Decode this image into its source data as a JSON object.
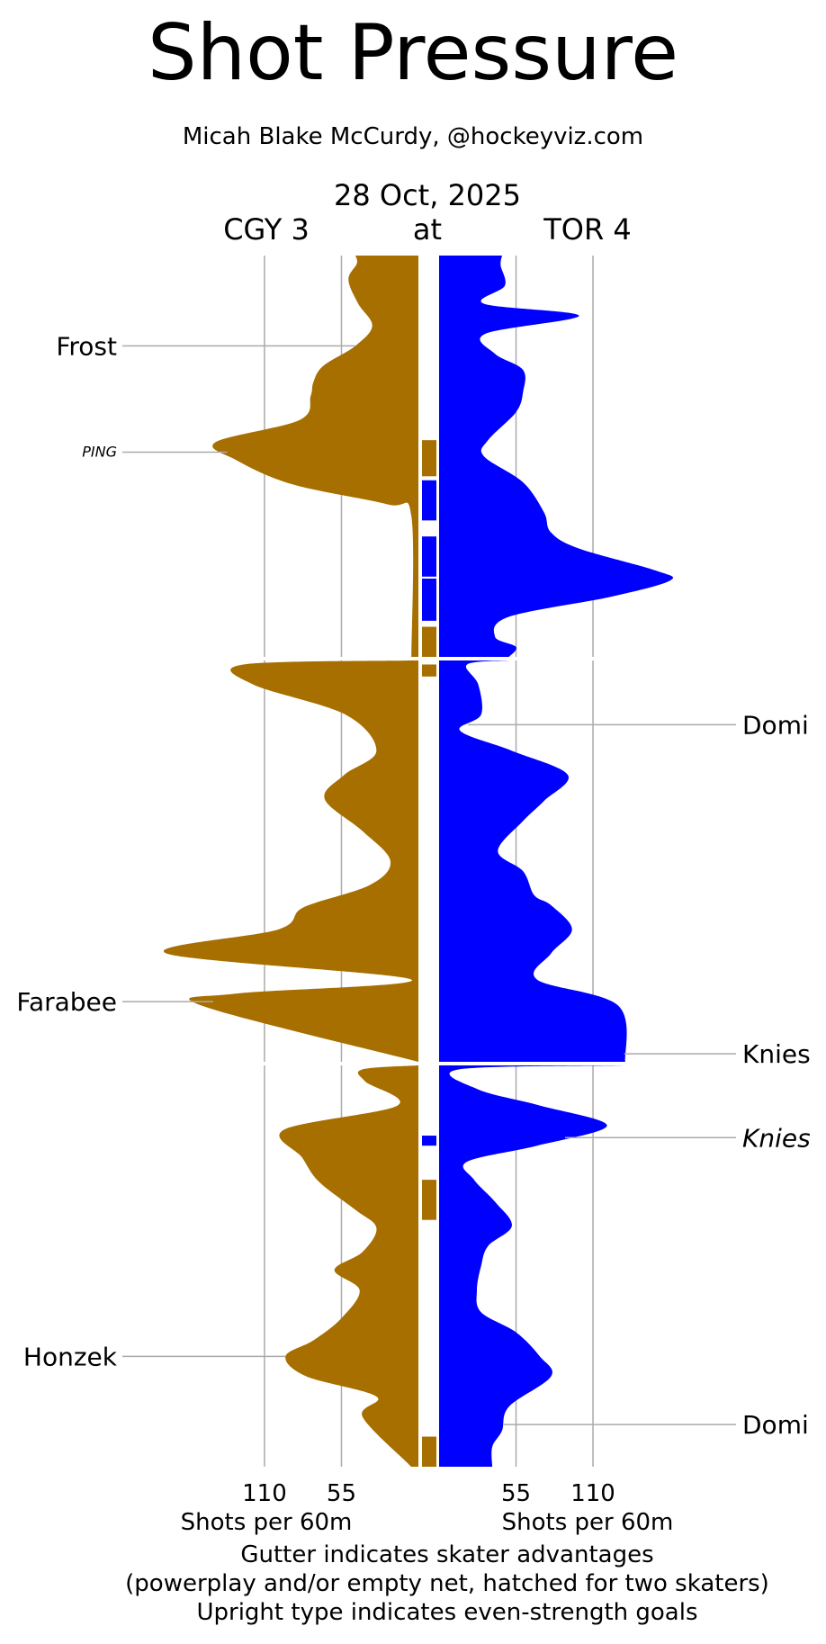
{
  "header": {
    "title": "Shot Pressure",
    "author": "Micah Blake McCurdy, @hockeyviz.com",
    "date": "28 Oct, 2025",
    "away_label": "CGY 3",
    "at_label": "at",
    "home_label": "TOR 4"
  },
  "footer": {
    "left_axis_label": "Shots per 60m",
    "right_axis_label": "Shots per 60m",
    "note_1": "Gutter indicates skater advantages",
    "note_2": "(powerplay and/or empty net, hatched for two skaters)",
    "note_3": "Upright type indicates even-strength goals"
  },
  "chart_data": {
    "type": "area",
    "title": "Shot Pressure",
    "x_axis": {
      "label": "Shots per 60m",
      "ticks": [
        110,
        55
      ],
      "range": [
        0,
        150
      ],
      "grid": true
    },
    "y_axis": {
      "label": "",
      "unit": "game minutes",
      "range": [
        0,
        60
      ],
      "periods": [
        [
          0,
          20
        ],
        [
          20,
          40
        ],
        [
          40,
          60
        ]
      ]
    },
    "colors": {
      "away": "#a66f00",
      "home": "#0000ff",
      "grid": "#aaaaaa"
    },
    "series": [
      {
        "name": "CGY 3",
        "side": "left",
        "color": "#a66f00",
        "profile": [
          [
            0,
            45
          ],
          [
            0.4,
            44
          ],
          [
            1.2,
            50
          ],
          [
            2.4,
            43
          ],
          [
            3.5,
            33
          ],
          [
            4.5,
            45
          ],
          [
            5.5,
            68
          ],
          [
            6.3,
            75
          ],
          [
            7.0,
            77
          ],
          [
            8.2,
            85
          ],
          [
            9.3,
            145
          ],
          [
            10.2,
            130
          ],
          [
            11.4,
            90
          ],
          [
            12.4,
            22
          ],
          [
            13.0,
            5
          ],
          [
            20.0,
            5
          ],
          [
            20.2,
            125
          ],
          [
            21.2,
            118
          ],
          [
            22.7,
            52
          ],
          [
            24.5,
            30
          ],
          [
            25.7,
            53
          ],
          [
            26.9,
            67
          ],
          [
            28.5,
            40
          ],
          [
            30.0,
            20
          ],
          [
            31.2,
            35
          ],
          [
            32.3,
            82
          ],
          [
            33.4,
            100
          ],
          [
            34.6,
            180
          ],
          [
            35.9,
            5
          ],
          [
            36.6,
            130
          ],
          [
            37.2,
            155
          ],
          [
            40.0,
            0
          ],
          [
            40.2,
            40
          ],
          [
            40.8,
            38
          ],
          [
            42.0,
            15
          ],
          [
            43.2,
            96
          ],
          [
            44.6,
            83
          ],
          [
            45.8,
            71
          ],
          [
            47.2,
            45
          ],
          [
            48.1,
            30
          ],
          [
            49.3,
            40
          ],
          [
            50.2,
            60
          ],
          [
            51.2,
            42
          ],
          [
            52.6,
            55
          ],
          [
            53.7,
            75
          ],
          [
            54.5,
            95
          ],
          [
            55.5,
            80
          ],
          [
            56.5,
            30
          ],
          [
            57.5,
            40
          ],
          [
            59.8,
            8
          ],
          [
            60.0,
            5
          ]
        ]
      },
      {
        "name": "TOR 4",
        "side": "right",
        "color": "#0000ff",
        "profile": [
          [
            0,
            45
          ],
          [
            0.5,
            44
          ],
          [
            1.5,
            47
          ],
          [
            2.4,
            32
          ],
          [
            3.0,
            100
          ],
          [
            3.9,
            33
          ],
          [
            4.9,
            40
          ],
          [
            5.7,
            60
          ],
          [
            6.8,
            60
          ],
          [
            7.8,
            55
          ],
          [
            9.2,
            35
          ],
          [
            10.0,
            32
          ],
          [
            11.3,
            60
          ],
          [
            12.8,
            75
          ],
          [
            13.8,
            80
          ],
          [
            14.6,
            100
          ],
          [
            15.7,
            155
          ],
          [
            16.2,
            165
          ],
          [
            17.0,
            123
          ],
          [
            18.0,
            50
          ],
          [
            19.0,
            40
          ],
          [
            19.5,
            55
          ],
          [
            20.0,
            50
          ],
          [
            20.2,
            20
          ],
          [
            21.2,
            28
          ],
          [
            22.7,
            30
          ],
          [
            23.5,
            15
          ],
          [
            24.5,
            52
          ],
          [
            25.7,
            92
          ],
          [
            27.0,
            75
          ],
          [
            28.0,
            60
          ],
          [
            29.5,
            42
          ],
          [
            30.5,
            60
          ],
          [
            31.7,
            68
          ],
          [
            32.2,
            80
          ],
          [
            33.4,
            95
          ],
          [
            34.6,
            80
          ],
          [
            35.9,
            70
          ],
          [
            37.2,
            128
          ],
          [
            40.0,
            133
          ],
          [
            40.2,
            14
          ],
          [
            41.2,
            28
          ],
          [
            42.0,
            72
          ],
          [
            43.0,
            120
          ],
          [
            44.0,
            70
          ],
          [
            44.8,
            20
          ],
          [
            45.7,
            25
          ],
          [
            46.8,
            40
          ],
          [
            48.0,
            52
          ],
          [
            49.0,
            35
          ],
          [
            50.0,
            30
          ],
          [
            51.2,
            27
          ],
          [
            52.3,
            30
          ],
          [
            53.3,
            55
          ],
          [
            54.5,
            72
          ],
          [
            55.5,
            80
          ],
          [
            57.0,
            50
          ],
          [
            58.2,
            45
          ],
          [
            59.0,
            38
          ],
          [
            60.0,
            38
          ]
        ]
      }
    ],
    "gutter_segments": [
      {
        "team": "CGY 3",
        "start": 9.2,
        "end": 11.0,
        "color": "#a66f00"
      },
      {
        "team": "TOR 4",
        "start": 11.2,
        "end": 13.2,
        "color": "#0000ff"
      },
      {
        "team": "TOR 4",
        "start": 14.0,
        "end": 16.0,
        "color": "#0000ff"
      },
      {
        "team": "TOR 4",
        "start": 16.1,
        "end": 18.2,
        "color": "#0000ff"
      },
      {
        "team": "CGY 3",
        "start": 18.5,
        "end": 20.0,
        "color": "#a66f00"
      },
      {
        "team": "CGY 3",
        "start": 20.2,
        "end": 20.8,
        "color": "#a66f00"
      },
      {
        "team": "TOR 4",
        "start": 43.5,
        "end": 44.0,
        "color": "#0000ff"
      },
      {
        "team": "CGY 3",
        "start": 45.7,
        "end": 47.7,
        "color": "#a66f00"
      },
      {
        "team": "CGY 3",
        "start": 58.5,
        "end": 60.0,
        "color": "#a66f00"
      }
    ],
    "goals": [
      {
        "player": "Frost",
        "team": "CGY 3",
        "minute": 4.5,
        "even_strength": true,
        "small": false
      },
      {
        "player": "PING",
        "team": "CGY 3",
        "minute": 9.8,
        "even_strength": false,
        "small": true
      },
      {
        "player": "Domi",
        "team": "TOR 4",
        "minute": 23.2,
        "even_strength": true,
        "small": false
      },
      {
        "player": "Farabee",
        "team": "CGY 3",
        "minute": 37.0,
        "even_strength": true,
        "small": false
      },
      {
        "player": "Knies",
        "team": "TOR 4",
        "minute": 39.6,
        "even_strength": true,
        "small": false
      },
      {
        "player": "Knies",
        "team": "TOR 4",
        "minute": 43.6,
        "even_strength": false,
        "small": false
      },
      {
        "player": "Honzek",
        "team": "CGY 3",
        "minute": 54.5,
        "even_strength": true,
        "small": false
      },
      {
        "player": "Domi",
        "team": "TOR 4",
        "minute": 57.9,
        "even_strength": true,
        "small": false
      }
    ]
  }
}
